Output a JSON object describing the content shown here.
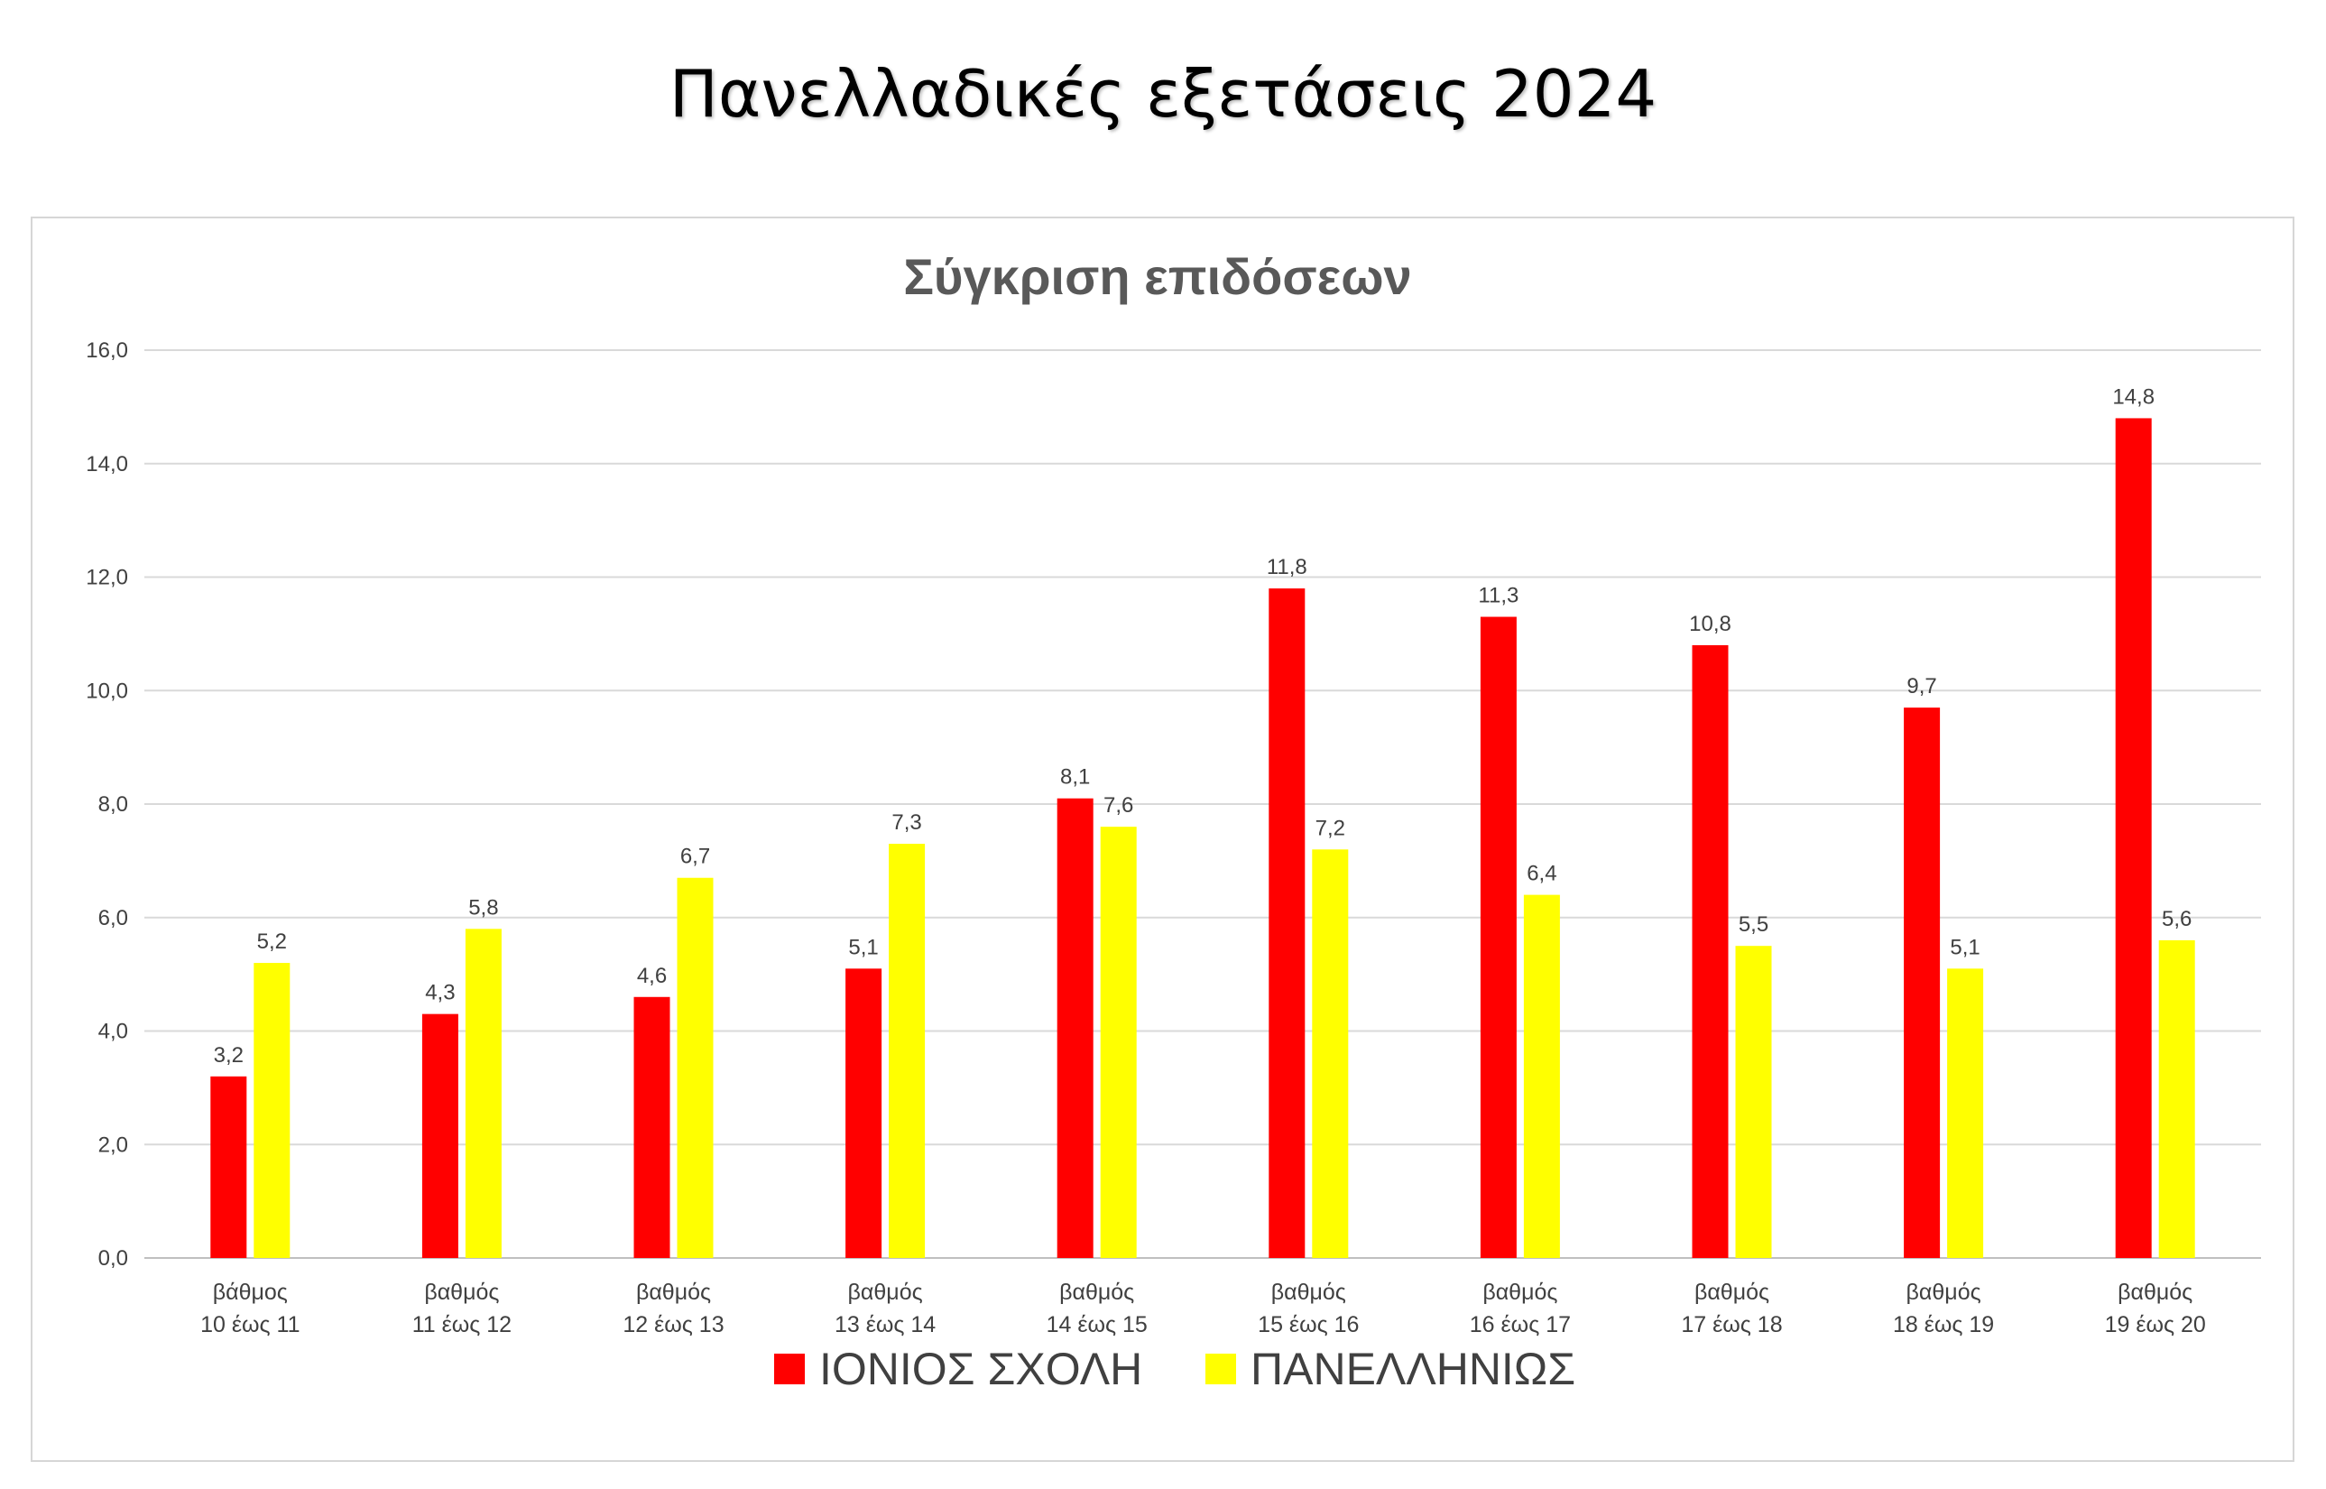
{
  "page": {
    "title": "Πανελλαδικές εξετάσεις 2024"
  },
  "chart_data": {
    "type": "bar",
    "title": "Σύγκριση επιδόσεων",
    "xlabel": "",
    "ylabel": "",
    "ylim": [
      0,
      16
    ],
    "ytick_step": 2,
    "ytick_labels": [
      "0,0",
      "2,0",
      "4,0",
      "6,0",
      "8,0",
      "10,0",
      "12,0",
      "14,0",
      "16,0"
    ],
    "grid": true,
    "legend_position": "bottom",
    "categories": [
      [
        "βάθμος",
        "10 έως 11"
      ],
      [
        "βαθμός",
        "11 έως 12"
      ],
      [
        "βαθμός",
        "12 έως 13"
      ],
      [
        "βαθμός",
        "13 έως 14"
      ],
      [
        "βαθμός",
        "14 έως 15"
      ],
      [
        "βαθμός",
        "15 έως 16"
      ],
      [
        "βαθμός",
        "16 έως 17"
      ],
      [
        "βαθμός",
        "17 έως 18"
      ],
      [
        "βαθμός",
        "18 έως 19"
      ],
      [
        "βαθμός",
        "19 έως 20"
      ]
    ],
    "series": [
      {
        "name": "ΙΟΝΙΟΣ ΣΧΟΛΗ",
        "color": "#ff0000",
        "values": [
          3.2,
          4.3,
          4.6,
          5.1,
          8.1,
          11.8,
          11.3,
          10.8,
          9.7,
          14.8
        ],
        "labels": [
          "3,2",
          "4,3",
          "4,6",
          "5,1",
          "8,1",
          "11,8",
          "11,3",
          "10,8",
          "9,7",
          "14,8"
        ]
      },
      {
        "name": "ΠΑΝΕΛΛΗΝΙΩΣ",
        "color": "#ffff00",
        "values": [
          5.2,
          5.8,
          6.7,
          7.3,
          7.6,
          7.2,
          6.4,
          5.5,
          5.1,
          5.6
        ],
        "labels": [
          "5,2",
          "5,8",
          "6,7",
          "7,3",
          "7,6",
          "7,2",
          "6,4",
          "5,5",
          "5,1",
          "5,6"
        ]
      }
    ]
  }
}
